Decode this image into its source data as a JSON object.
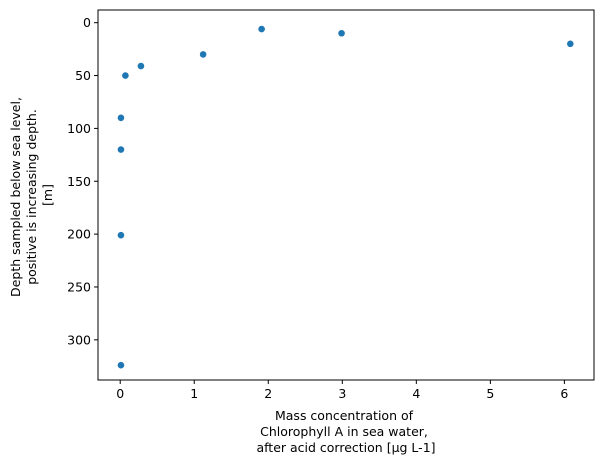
{
  "chart_data": {
    "type": "scatter",
    "title": "",
    "xlabel_lines": [
      "Mass concentration of",
      "Chlorophyll A in sea water,",
      "after acid correction [µg L-1]"
    ],
    "ylabel_lines": [
      "Depth sampled below sea level,",
      "positive is increasing depth.",
      "[m]"
    ],
    "xlim": [
      -0.3,
      6.4
    ],
    "ylim": [
      338,
      -12
    ],
    "y_inverted": true,
    "xticks": [
      0,
      1,
      2,
      3,
      4,
      5,
      6
    ],
    "yticks": [
      0,
      50,
      100,
      150,
      200,
      250,
      300
    ],
    "grid": false,
    "legend": "none",
    "marker_color": "#1f77b4",
    "series": [
      {
        "points": [
          {
            "x": 1.91,
            "y": 6
          },
          {
            "x": 2.99,
            "y": 10
          },
          {
            "x": 6.08,
            "y": 20
          },
          {
            "x": 1.12,
            "y": 30
          },
          {
            "x": 0.28,
            "y": 41
          },
          {
            "x": 0.07,
            "y": 50
          },
          {
            "x": 0.01,
            "y": 90
          },
          {
            "x": 0.01,
            "y": 120
          },
          {
            "x": 0.01,
            "y": 201
          },
          {
            "x": 0.01,
            "y": 324
          }
        ]
      }
    ]
  }
}
